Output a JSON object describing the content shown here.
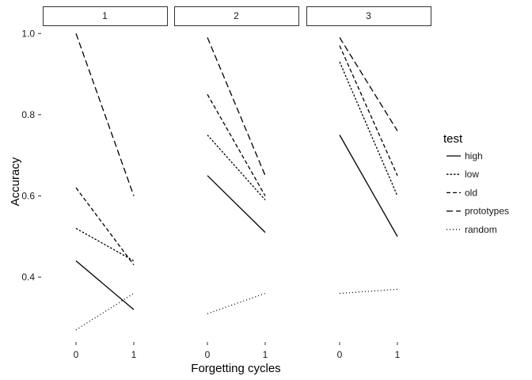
{
  "chart_data": {
    "type": "line",
    "xlabel": "Forgetting cycles",
    "ylabel": "Accuracy",
    "x": [
      0,
      1
    ],
    "x_ticks": [
      "0",
      "1"
    ],
    "y_ticks": [
      "0.4",
      "0.6",
      "0.8",
      "1.0"
    ],
    "ylim": [
      0.25,
      1.02
    ],
    "grid": false,
    "legend": {
      "title": "test",
      "position": "right"
    },
    "panels": [
      {
        "label": "1",
        "series": [
          {
            "name": "high",
            "values": [
              0.44,
              0.32
            ]
          },
          {
            "name": "low",
            "values": [
              0.52,
              0.44
            ]
          },
          {
            "name": "old",
            "values": [
              0.62,
              0.43
            ]
          },
          {
            "name": "prototypes",
            "values": [
              1.0,
              0.6
            ]
          },
          {
            "name": "random",
            "values": [
              0.27,
              0.36
            ]
          }
        ]
      },
      {
        "label": "2",
        "series": [
          {
            "name": "high",
            "values": [
              0.65,
              0.51
            ]
          },
          {
            "name": "low",
            "values": [
              0.75,
              0.59
            ]
          },
          {
            "name": "old",
            "values": [
              0.85,
              0.6
            ]
          },
          {
            "name": "prototypes",
            "values": [
              0.99,
              0.65
            ]
          },
          {
            "name": "random",
            "values": [
              0.31,
              0.36
            ]
          }
        ]
      },
      {
        "label": "3",
        "series": [
          {
            "name": "high",
            "values": [
              0.75,
              0.5
            ]
          },
          {
            "name": "low",
            "values": [
              0.93,
              0.6
            ]
          },
          {
            "name": "old",
            "values": [
              0.97,
              0.65
            ]
          },
          {
            "name": "prototypes",
            "values": [
              0.99,
              0.76
            ]
          },
          {
            "name": "random",
            "values": [
              0.36,
              0.37
            ]
          }
        ]
      }
    ]
  }
}
